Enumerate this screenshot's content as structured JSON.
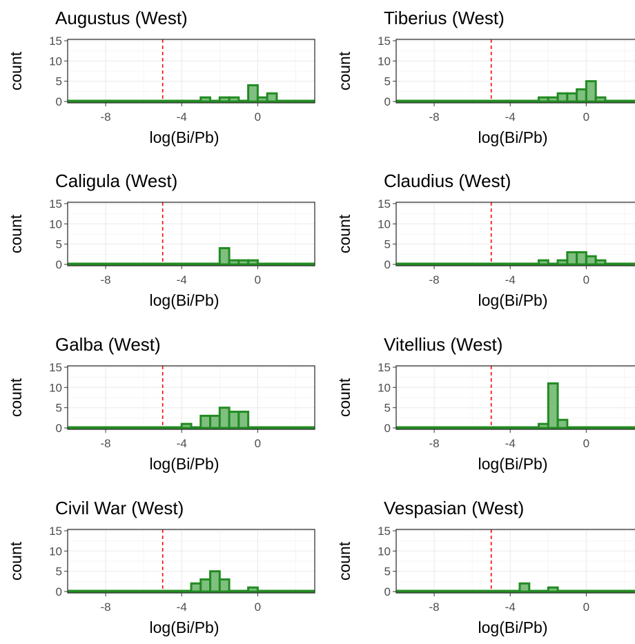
{
  "colors": {
    "bar_outline": "#228b22",
    "bar_fill": "#7fbf7f",
    "ref_line": "#ff0000",
    "grid_major": "#ebebeb",
    "grid_minor": "#f5f5f5",
    "panel_border": "#333333",
    "tick_text": "#4d4d4d"
  },
  "chart_data": [
    {
      "type": "bar",
      "title": "Augustus (West)",
      "xlabel": "log(Bi/Pb)",
      "ylabel": "count",
      "xlim": [
        -10,
        3
      ],
      "ylim": [
        0,
        15
      ],
      "xticks": [
        "-8",
        "-4",
        "0"
      ],
      "yticks": [
        "0",
        "5",
        "10",
        "15"
      ],
      "bin_width": 0.5,
      "reference_x": -5,
      "x": [
        -2.75,
        -1.75,
        -1.25,
        -0.25,
        0.25,
        0.75
      ],
      "values": [
        1,
        1,
        1,
        4,
        1,
        2
      ]
    },
    {
      "type": "bar",
      "title": "Tiberius (West)",
      "xlabel": "log(Bi/Pb)",
      "ylabel": "count",
      "xlim": [
        -10,
        3
      ],
      "ylim": [
        0,
        15
      ],
      "xticks": [
        "-8",
        "-4",
        "0"
      ],
      "yticks": [
        "0",
        "5",
        "10",
        "15"
      ],
      "bin_width": 0.5,
      "reference_x": -5,
      "x": [
        -2.25,
        -1.75,
        -1.25,
        -0.75,
        -0.25,
        0.25,
        0.75
      ],
      "values": [
        1,
        1,
        2,
        2,
        3,
        5,
        1
      ]
    },
    {
      "type": "bar",
      "title": "Caligula (West)",
      "xlabel": "log(Bi/Pb)",
      "ylabel": "count",
      "xlim": [
        -10,
        3
      ],
      "ylim": [
        0,
        15
      ],
      "xticks": [
        "-8",
        "-4",
        "0"
      ],
      "yticks": [
        "0",
        "5",
        "10",
        "15"
      ],
      "bin_width": 0.5,
      "reference_x": -5,
      "x": [
        -1.75,
        -1.25,
        -0.75,
        -0.25
      ],
      "values": [
        4,
        1,
        1,
        1
      ]
    },
    {
      "type": "bar",
      "title": "Claudius (West)",
      "xlabel": "log(Bi/Pb)",
      "ylabel": "count",
      "xlim": [
        -10,
        3
      ],
      "ylim": [
        0,
        15
      ],
      "xticks": [
        "-8",
        "-4",
        "0"
      ],
      "yticks": [
        "0",
        "5",
        "10",
        "15"
      ],
      "bin_width": 0.5,
      "reference_x": -5,
      "x": [
        -2.25,
        -1.25,
        -0.75,
        -0.25,
        0.25,
        0.75
      ],
      "values": [
        1,
        1,
        3,
        3,
        2,
        1
      ]
    },
    {
      "type": "bar",
      "title": "Galba (West)",
      "xlabel": "log(Bi/Pb)",
      "ylabel": "count",
      "xlim": [
        -10,
        3
      ],
      "ylim": [
        0,
        15
      ],
      "xticks": [
        "-8",
        "-4",
        "0"
      ],
      "yticks": [
        "0",
        "5",
        "10",
        "15"
      ],
      "bin_width": 0.5,
      "reference_x": -5,
      "x": [
        -3.75,
        -2.75,
        -2.25,
        -1.75,
        -1.25,
        -0.75
      ],
      "values": [
        1,
        3,
        3,
        5,
        4,
        4
      ]
    },
    {
      "type": "bar",
      "title": "Vitellius (West)",
      "xlabel": "log(Bi/Pb)",
      "ylabel": "count",
      "xlim": [
        -10,
        3
      ],
      "ylim": [
        0,
        15
      ],
      "xticks": [
        "-8",
        "-4",
        "0"
      ],
      "yticks": [
        "0",
        "5",
        "10",
        "15"
      ],
      "bin_width": 0.5,
      "reference_x": -5,
      "x": [
        -2.25,
        -1.75,
        -1.25
      ],
      "values": [
        1,
        11,
        2
      ]
    },
    {
      "type": "bar",
      "title": "Civil War (West)",
      "xlabel": "log(Bi/Pb)",
      "ylabel": "count",
      "xlim": [
        -10,
        3
      ],
      "ylim": [
        0,
        15
      ],
      "xticks": [
        "-8",
        "-4",
        "0"
      ],
      "yticks": [
        "0",
        "5",
        "10",
        "15"
      ],
      "bin_width": 0.5,
      "reference_x": -5,
      "x": [
        -3.25,
        -2.75,
        -2.25,
        -1.75,
        -0.25
      ],
      "values": [
        2,
        3,
        5,
        3,
        1
      ]
    },
    {
      "type": "bar",
      "title": "Vespasian (West)",
      "xlabel": "log(Bi/Pb)",
      "ylabel": "count",
      "xlim": [
        -10,
        3
      ],
      "ylim": [
        0,
        15
      ],
      "xticks": [
        "-8",
        "-4",
        "0"
      ],
      "yticks": [
        "0",
        "5",
        "10",
        "15"
      ],
      "bin_width": 0.5,
      "reference_x": -5,
      "x": [
        -3.25,
        -1.75
      ],
      "values": [
        2,
        1
      ]
    }
  ]
}
